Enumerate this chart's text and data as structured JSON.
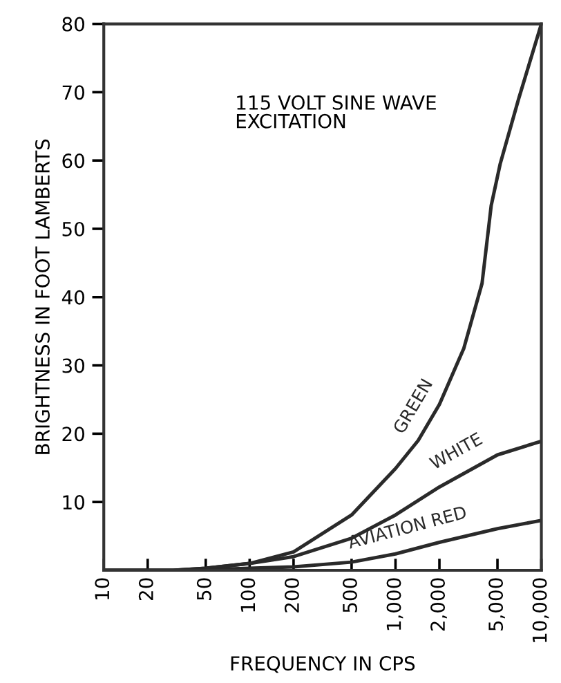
{
  "chart_data": {
    "type": "line",
    "xlabel": "FREQUENCY IN CPS",
    "ylabel": "BRIGHTNESS IN FOOT LAMBERTS",
    "annotations": [
      "115 VOLT SINE WAVE\nEXCITATION"
    ],
    "log": "x",
    "grid": false,
    "marker": "none",
    "line_style": "solid",
    "xlim": [
      10,
      10000
    ],
    "ylim": [
      0,
      80
    ],
    "xticks": [
      10,
      20,
      50,
      100,
      200,
      500,
      {
        "value": 1000,
        "label": "1,000"
      },
      {
        "value": 2000,
        "label": "2,000"
      },
      {
        "value": 5000,
        "label": "5,000"
      },
      {
        "value": 10000,
        "label": "10,000"
      }
    ],
    "yticks": [
      10,
      20,
      30,
      40,
      50,
      60,
      70,
      80
    ],
    "series": [
      {
        "name": "GREEN",
        "color": "#2a2a2a",
        "x": [
          10,
          20,
          30,
          50,
          100,
          200,
          500,
          1000,
          1430,
          2000,
          2940,
          3920,
          4530,
          5220,
          6980,
          10000
        ],
        "values": [
          0,
          0,
          0,
          0.3,
          1.0,
          2.7,
          8.1,
          14.9,
          19,
          24.3,
          32.5,
          42,
          53.4,
          59.5,
          69,
          80
        ]
      },
      {
        "name": "WHITE",
        "color": "#2a2a2a",
        "x": [
          10,
          20,
          30,
          50,
          100,
          200,
          500,
          1000,
          2000,
          5000,
          10000
        ],
        "values": [
          0,
          0,
          0,
          0.3,
          1.0,
          2.0,
          4.7,
          8.1,
          12.2,
          16.9,
          18.9
        ]
      },
      {
        "name": "AVIATION RED",
        "color": "#2a2a2a",
        "x": [
          10,
          20,
          30,
          50,
          100,
          200,
          500,
          1000,
          2000,
          5000,
          10000
        ],
        "values": [
          0,
          0,
          0,
          0.1,
          0.3,
          0.5,
          1.2,
          2.4,
          4.1,
          6.1,
          7.3
        ]
      }
    ]
  }
}
